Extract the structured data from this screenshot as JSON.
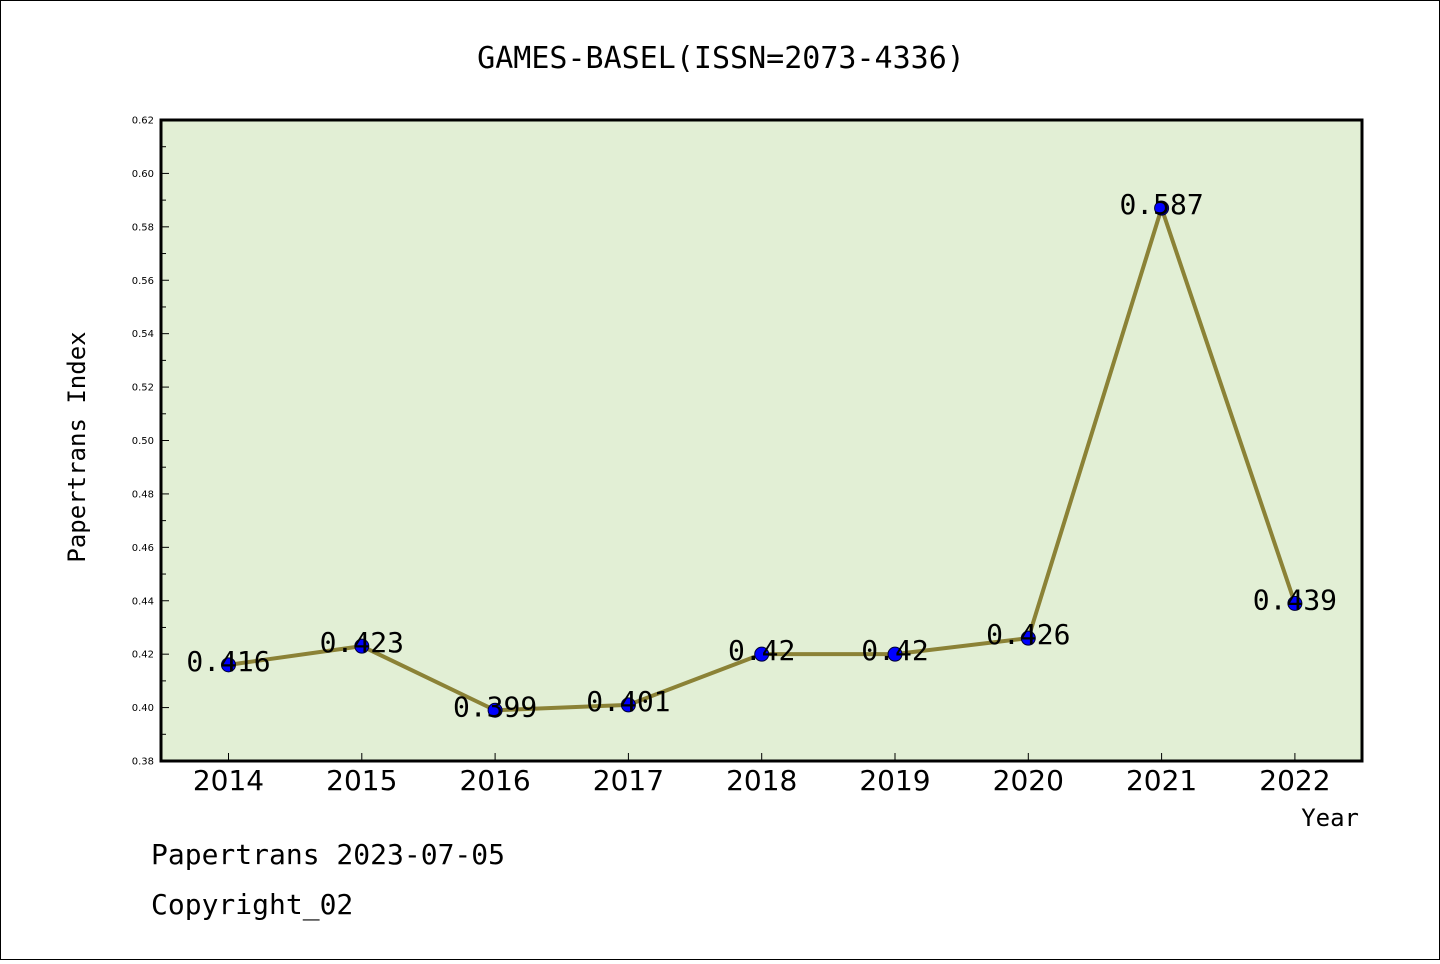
{
  "chart_data": {
    "type": "line",
    "title": "GAMES-BASEL(ISSN=2073-4336)",
    "xlabel": "Year",
    "ylabel": "Papertrans Index",
    "categories": [
      "2014",
      "2015",
      "2016",
      "2017",
      "2018",
      "2019",
      "2020",
      "2021",
      "2022"
    ],
    "values": [
      0.416,
      0.423,
      0.399,
      0.401,
      0.42,
      0.42,
      0.426,
      0.587,
      0.439
    ],
    "data_labels": [
      "0.416",
      "0.423",
      "0.399",
      "0.401",
      "0.42",
      "0.42",
      "0.426",
      "0.587",
      "0.439"
    ],
    "ylim": [
      0.38,
      0.62
    ],
    "yticks": [
      "0.38",
      "0.40",
      "0.42",
      "0.44",
      "0.46",
      "0.48",
      "0.50",
      "0.52",
      "0.54",
      "0.56",
      "0.58",
      "0.60",
      "0.62"
    ],
    "grid": false,
    "colors": {
      "line": "#8b8236",
      "marker": "#0000ff",
      "plot_background": "#e2efd5"
    }
  },
  "footer": {
    "line1": "Papertrans 2023-07-05",
    "line2": "Copyright_02"
  }
}
